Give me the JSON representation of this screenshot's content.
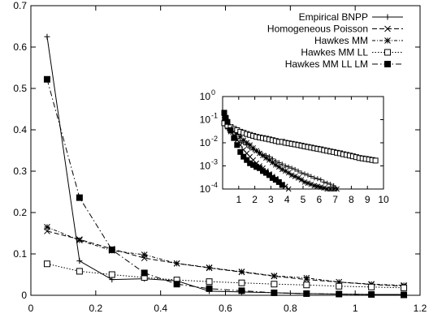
{
  "chart_data": [
    {
      "type": "line",
      "title": "",
      "xlabel": "",
      "ylabel": "",
      "xlim": [
        0,
        1.2
      ],
      "ylim": [
        0,
        0.7
      ],
      "xticks": [
        {
          "v": 0,
          "label": "0"
        },
        {
          "v": 0.2,
          "label": "0.2"
        },
        {
          "v": 0.4,
          "label": "0.4"
        },
        {
          "v": 0.6,
          "label": "0.6"
        },
        {
          "v": 0.8,
          "label": "0.8"
        },
        {
          "v": 1.0,
          "label": "1"
        },
        {
          "v": 1.2,
          "label": "1.2"
        }
      ],
      "yticks": [
        {
          "v": 0,
          "label": "0"
        },
        {
          "v": 0.1,
          "label": "0.1"
        },
        {
          "v": 0.2,
          "label": "0.2"
        },
        {
          "v": 0.3,
          "label": "0.3"
        },
        {
          "v": 0.4,
          "label": "0.4"
        },
        {
          "v": 0.5,
          "label": "0.5"
        },
        {
          "v": 0.6,
          "label": "0.6"
        },
        {
          "v": 0.7,
          "label": "0.7"
        }
      ],
      "grid": false,
      "legend_position": "top-right",
      "x": [
        0.05,
        0.15,
        0.25,
        0.35,
        0.45,
        0.55,
        0.65,
        0.75,
        0.85,
        0.95,
        1.05,
        1.15
      ],
      "series": [
        {
          "name": "Empirical BNPP",
          "marker": "plus",
          "dash": "solid",
          "values": [
            0.625,
            0.083,
            0.038,
            0.04,
            0.035,
            0.01,
            0.008,
            0.006,
            0.004,
            0.003,
            0.002,
            0.002
          ]
        },
        {
          "name": "Homogeneous Poisson",
          "marker": "x",
          "dash": "dashed",
          "values": [
            0.155,
            0.135,
            0.112,
            0.09,
            0.077,
            0.066,
            0.056,
            0.046,
            0.038,
            0.032,
            0.026,
            0.022
          ]
        },
        {
          "name": "Hawkes MM",
          "marker": "star",
          "dash": "dash-dot-short",
          "values": [
            0.165,
            0.133,
            0.108,
            0.098,
            0.077,
            0.067,
            0.057,
            0.047,
            0.042,
            0.032,
            0.027,
            0.024
          ]
        },
        {
          "name": "Hawkes MM LL",
          "marker": "open-square",
          "dash": "dotted",
          "values": [
            0.076,
            0.058,
            0.05,
            0.043,
            0.037,
            0.033,
            0.03,
            0.027,
            0.025,
            0.022,
            0.02,
            0.018
          ]
        },
        {
          "name": "Hawkes MM LL LM",
          "marker": "filled-square",
          "dash": "dash-dot",
          "values": [
            0.522,
            0.236,
            0.11,
            0.054,
            0.027,
            0.016,
            0.011,
            0.006,
            0.004,
            0.003,
            0.002,
            0.001
          ]
        }
      ]
    },
    {
      "type": "scatter",
      "title": "",
      "xlabel": "",
      "ylabel": "",
      "xlim": [
        0,
        10
      ],
      "ylim": [
        0.0001,
        1
      ],
      "yscale": "log",
      "xticks": [
        {
          "v": 1,
          "label": "1"
        },
        {
          "v": 2,
          "label": "2"
        },
        {
          "v": 3,
          "label": "3"
        },
        {
          "v": 4,
          "label": "4"
        },
        {
          "v": 5,
          "label": "5"
        },
        {
          "v": 6,
          "label": "6"
        },
        {
          "v": 7,
          "label": "7"
        },
        {
          "v": 8,
          "label": "8"
        },
        {
          "v": 9,
          "label": "9"
        },
        {
          "v": 10,
          "label": "10"
        }
      ],
      "yticks": [
        {
          "v": 1,
          "base": "10",
          "exp": "0"
        },
        {
          "v": 0.1,
          "base": "10",
          "exp": "-1"
        },
        {
          "v": 0.01,
          "base": "10",
          "exp": "-2"
        },
        {
          "v": 0.001,
          "base": "10",
          "exp": "-3"
        },
        {
          "v": 0.0001,
          "base": "10",
          "exp": "-4"
        }
      ],
      "grid": false,
      "series": [
        {
          "name": "Empirical BNPP",
          "marker": "plus",
          "x": [
            0.1,
            0.3,
            0.5,
            0.7,
            0.9,
            1.1,
            1.3,
            1.5,
            1.7,
            1.9,
            2.1,
            2.3,
            2.5,
            2.7,
            2.9,
            3.1,
            3.3,
            3.5,
            3.7,
            3.9,
            4.1,
            4.3,
            4.5,
            4.7,
            4.9,
            5.1,
            5.3,
            5.5,
            5.7,
            5.9,
            6.1,
            6.3,
            6.5,
            6.7,
            6.9
          ],
          "values": [
            0.065,
            0.04,
            0.028,
            0.02,
            0.015,
            0.012,
            0.01,
            0.008,
            0.006,
            0.005,
            0.0045,
            0.004,
            0.003,
            0.0028,
            0.0025,
            0.002,
            0.0016,
            0.0014,
            0.0012,
            0.001,
            0.0009,
            0.0008,
            0.0007,
            0.0006,
            0.0005,
            0.00045,
            0.0004,
            0.00035,
            0.0003,
            0.00028,
            0.00025,
            0.0002,
            0.00018,
            0.00016,
            0.00014
          ]
        },
        {
          "name": "Homogeneous Poisson",
          "marker": "x",
          "x": [
            0.1,
            0.3,
            0.5,
            0.7,
            0.9,
            1.1,
            1.3,
            1.5,
            1.7,
            1.9,
            2.1,
            2.3,
            2.5,
            2.7,
            2.9,
            3.1,
            3.3,
            3.5,
            3.7,
            3.9,
            4.1
          ],
          "values": [
            0.12,
            0.06,
            0.03,
            0.02,
            0.013,
            0.008,
            0.005,
            0.0035,
            0.0025,
            0.0018,
            0.0013,
            0.001,
            0.0008,
            0.0006,
            0.00045,
            0.00035,
            0.00028,
            0.0002,
            0.00016,
            0.00013,
            0.0001
          ]
        },
        {
          "name": "Hawkes MM",
          "marker": "star",
          "x": [
            0.1,
            0.3,
            0.5,
            0.7,
            0.9,
            1.1,
            1.3,
            1.5,
            1.7,
            1.9,
            2.1,
            2.3,
            2.5,
            2.7,
            2.9,
            3.1,
            3.3,
            3.5,
            3.7,
            3.9,
            4.1,
            4.3,
            4.5,
            4.7,
            4.9,
            5.1,
            5.3,
            5.5,
            5.7,
            5.9,
            6.1,
            6.3,
            6.5,
            6.7,
            6.9,
            7.1
          ],
          "values": [
            0.15,
            0.08,
            0.05,
            0.035,
            0.025,
            0.018,
            0.013,
            0.01,
            0.008,
            0.006,
            0.0045,
            0.0035,
            0.0028,
            0.0022,
            0.0018,
            0.0014,
            0.0011,
            0.0009,
            0.0007,
            0.0006,
            0.0005,
            0.0004,
            0.00035,
            0.0003,
            0.00025,
            0.0002,
            0.00018,
            0.00016,
            0.00014,
            0.00013,
            0.00012,
            0.00011,
            0.0001,
            0.0001,
            0.0001,
            0.0001
          ]
        },
        {
          "name": "Hawkes MM LL",
          "marker": "open-square",
          "x": [
            0.1,
            0.3,
            0.5,
            0.7,
            0.9,
            1.1,
            1.3,
            1.5,
            1.7,
            1.9,
            2.1,
            2.3,
            2.5,
            2.7,
            2.9,
            3.1,
            3.3,
            3.5,
            3.7,
            3.9,
            4.1,
            4.3,
            4.5,
            4.7,
            4.9,
            5.1,
            5.3,
            5.5,
            5.7,
            5.9,
            6.1,
            6.3,
            6.5,
            6.7,
            6.9,
            7.1,
            7.3,
            7.5,
            7.7,
            7.9,
            8.1,
            8.3,
            8.5,
            8.7,
            8.9,
            9.1,
            9.3,
            9.5
          ],
          "values": [
            0.07,
            0.055,
            0.047,
            0.04,
            0.035,
            0.03,
            0.027,
            0.024,
            0.022,
            0.02,
            0.018,
            0.017,
            0.016,
            0.015,
            0.014,
            0.013,
            0.012,
            0.011,
            0.011,
            0.01,
            0.0095,
            0.009,
            0.0085,
            0.008,
            0.0075,
            0.007,
            0.0066,
            0.0062,
            0.0058,
            0.0055,
            0.0052,
            0.0048,
            0.0045,
            0.0042,
            0.004,
            0.0037,
            0.0035,
            0.0032,
            0.003,
            0.0028,
            0.0026,
            0.0024,
            0.0022,
            0.0021,
            0.002,
            0.0019,
            0.0018,
            0.0017
          ]
        },
        {
          "name": "Hawkes MM LL LM",
          "marker": "filled-square",
          "x": [
            0.1,
            0.2,
            0.3,
            0.5,
            0.7,
            0.9,
            1.1,
            1.3,
            1.5,
            1.7,
            1.9,
            2.1,
            2.3,
            2.5,
            2.7,
            2.9,
            3.1,
            3.3,
            3.5,
            3.7
          ],
          "values": [
            0.2,
            0.12,
            0.08,
            0.035,
            0.016,
            0.008,
            0.004,
            0.0025,
            0.0018,
            0.0013,
            0.0011,
            0.0009,
            0.0008,
            0.0006,
            0.0005,
            0.0004,
            0.0003,
            0.00025,
            0.0002,
            0.00015
          ]
        }
      ]
    }
  ]
}
